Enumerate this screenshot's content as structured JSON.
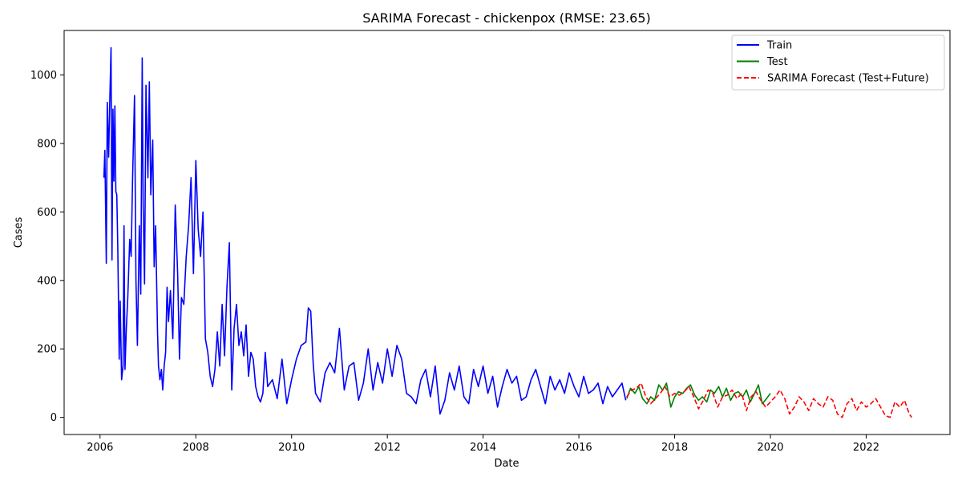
{
  "chart_data": {
    "type": "line",
    "title": "SARIMA Forecast - chickenpox (RMSE: 23.65)",
    "xlabel": "Date",
    "ylabel": "Cases",
    "xlim": [
      2005.25,
      2023.75
    ],
    "ylim": [
      -50,
      1130
    ],
    "x_ticks": [
      2006,
      2008,
      2010,
      2012,
      2014,
      2016,
      2018,
      2020,
      2022
    ],
    "x_tick_labels": [
      "2006",
      "2008",
      "2010",
      "2012",
      "2014",
      "2016",
      "2018",
      "2020",
      "2022"
    ],
    "y_ticks": [
      0,
      200,
      400,
      600,
      800,
      1000
    ],
    "y_tick_labels": [
      "0",
      "200",
      "400",
      "600",
      "800",
      "1000"
    ],
    "grid": false,
    "legend_position": "upper right",
    "series": [
      {
        "name": "Train",
        "color": "#0000ff",
        "style": "solid",
        "x": [
          2006.08,
          2006.1,
          2006.13,
          2006.15,
          2006.18,
          2006.2,
          2006.23,
          2006.25,
          2006.27,
          2006.29,
          2006.31,
          2006.33,
          2006.35,
          2006.37,
          2006.4,
          2006.42,
          2006.45,
          2006.48,
          2006.5,
          2006.52,
          2006.55,
          2006.58,
          2006.62,
          2006.65,
          2006.68,
          2006.72,
          2006.75,
          2006.78,
          2006.82,
          2006.85,
          2006.88,
          2006.9,
          2006.93,
          2006.96,
          2007.0,
          2007.03,
          2007.06,
          2007.1,
          2007.13,
          2007.16,
          2007.2,
          2007.22,
          2007.25,
          2007.28,
          2007.31,
          2007.34,
          2007.37,
          2007.4,
          2007.43,
          2007.47,
          2007.52,
          2007.57,
          2007.62,
          2007.66,
          2007.7,
          2007.75,
          2007.8,
          2007.85,
          2007.9,
          2007.95,
          2008.0,
          2008.05,
          2008.1,
          2008.15,
          2008.2,
          2008.25,
          2008.3,
          2008.35,
          2008.4,
          2008.45,
          2008.5,
          2008.55,
          2008.6,
          2008.65,
          2008.7,
          2008.75,
          2008.8,
          2008.85,
          2008.9,
          2008.95,
          2009.0,
          2009.05,
          2009.1,
          2009.15,
          2009.2,
          2009.25,
          2009.3,
          2009.35,
          2009.4,
          2009.45,
          2009.5,
          2009.6,
          2009.7,
          2009.8,
          2009.9,
          2010.0,
          2010.1,
          2010.2,
          2010.3,
          2010.35,
          2010.4,
          2010.45,
          2010.5,
          2010.6,
          2010.7,
          2010.8,
          2010.9,
          2011.0,
          2011.1,
          2011.2,
          2011.3,
          2011.4,
          2011.5,
          2011.6,
          2011.7,
          2011.8,
          2011.9,
          2012.0,
          2012.1,
          2012.2,
          2012.3,
          2012.4,
          2012.5,
          2012.6,
          2012.7,
          2012.8,
          2012.9,
          2013.0,
          2013.1,
          2013.2,
          2013.3,
          2013.4,
          2013.5,
          2013.6,
          2013.7,
          2013.8,
          2013.9,
          2014.0,
          2014.1,
          2014.2,
          2014.3,
          2014.4,
          2014.5,
          2014.6,
          2014.7,
          2014.8,
          2014.9,
          2015.0,
          2015.1,
          2015.2,
          2015.3,
          2015.4,
          2015.5,
          2015.6,
          2015.7,
          2015.8,
          2015.9,
          2016.0,
          2016.1,
          2016.2,
          2016.3,
          2016.4,
          2016.5,
          2016.6,
          2016.7,
          2016.8,
          2016.9,
          2016.98
        ],
        "y": [
          700,
          780,
          450,
          920,
          760,
          900,
          1080,
          460,
          900,
          690,
          910,
          660,
          650,
          500,
          170,
          340,
          110,
          150,
          560,
          140,
          260,
          350,
          520,
          470,
          700,
          940,
          400,
          210,
          560,
          360,
          1050,
          620,
          390,
          970,
          700,
          980,
          650,
          810,
          440,
          560,
          250,
          150,
          110,
          140,
          80,
          150,
          190,
          380,
          280,
          370,
          230,
          620,
          420,
          170,
          350,
          330,
          470,
          560,
          700,
          420,
          750,
          550,
          470,
          600,
          230,
          190,
          120,
          90,
          140,
          250,
          150,
          330,
          180,
          380,
          510,
          80,
          260,
          330,
          210,
          250,
          180,
          270,
          120,
          190,
          170,
          90,
          60,
          45,
          70,
          190,
          90,
          110,
          55,
          170,
          40,
          110,
          170,
          210,
          220,
          320,
          310,
          160,
          70,
          45,
          130,
          160,
          130,
          260,
          80,
          150,
          160,
          50,
          100,
          200,
          80,
          160,
          100,
          200,
          120,
          210,
          170,
          70,
          60,
          40,
          110,
          140,
          60,
          150,
          10,
          50,
          130,
          80,
          150,
          60,
          40,
          140,
          90,
          150,
          70,
          120,
          30,
          90,
          140,
          100,
          120,
          50,
          60,
          110,
          140,
          90,
          40,
          120,
          80,
          110,
          70,
          130,
          90,
          60,
          120,
          70,
          80,
          100,
          40,
          90,
          60,
          80,
          100,
          50
        ]
      },
      {
        "name": "Test",
        "color": "#008000",
        "style": "solid",
        "x": [
          2017.0,
          2017.08,
          2017.17,
          2017.25,
          2017.33,
          2017.42,
          2017.5,
          2017.58,
          2017.67,
          2017.75,
          2017.83,
          2017.92,
          2018.0,
          2018.08,
          2018.17,
          2018.25,
          2018.33,
          2018.42,
          2018.5,
          2018.58,
          2018.67,
          2018.75,
          2018.83,
          2018.92,
          2019.0,
          2019.08,
          2019.17,
          2019.25,
          2019.33,
          2019.42,
          2019.5,
          2019.58,
          2019.67,
          2019.75,
          2019.83,
          2019.92,
          2020.0
        ],
        "y": [
          55,
          85,
          70,
          90,
          55,
          40,
          60,
          50,
          95,
          80,
          100,
          30,
          60,
          75,
          70,
          85,
          95,
          65,
          50,
          60,
          45,
          80,
          70,
          90,
          60,
          85,
          50,
          70,
          75,
          60,
          80,
          45,
          70,
          95,
          40,
          55,
          70
        ]
      },
      {
        "name": "SARIMA Forecast (Test+Future)",
        "color": "#ff0000",
        "style": "dashed",
        "x": [
          2017.0,
          2017.1,
          2017.2,
          2017.3,
          2017.4,
          2017.5,
          2017.6,
          2017.7,
          2017.8,
          2017.9,
          2018.0,
          2018.1,
          2018.2,
          2018.3,
          2018.4,
          2018.5,
          2018.6,
          2018.7,
          2018.8,
          2018.9,
          2019.0,
          2019.1,
          2019.2,
          2019.3,
          2019.4,
          2019.5,
          2019.6,
          2019.7,
          2019.8,
          2019.9,
          2020.0,
          2020.1,
          2020.2,
          2020.3,
          2020.4,
          2020.5,
          2020.6,
          2020.7,
          2020.8,
          2020.9,
          2021.0,
          2021.1,
          2021.2,
          2021.3,
          2021.4,
          2021.5,
          2021.6,
          2021.7,
          2021.8,
          2021.9,
          2022.0,
          2022.1,
          2022.2,
          2022.3,
          2022.4,
          2022.5,
          2022.6,
          2022.7,
          2022.8,
          2022.9,
          2022.95
        ],
        "y": [
          60,
          80,
          85,
          100,
          60,
          40,
          55,
          70,
          90,
          60,
          70,
          65,
          75,
          90,
          60,
          25,
          50,
          80,
          70,
          30,
          60,
          65,
          80,
          55,
          70,
          20,
          60,
          75,
          50,
          30,
          45,
          60,
          80,
          55,
          10,
          30,
          60,
          45,
          20,
          55,
          40,
          30,
          60,
          50,
          10,
          0,
          40,
          55,
          20,
          45,
          30,
          40,
          55,
          30,
          5,
          0,
          45,
          30,
          50,
          10,
          0
        ]
      }
    ]
  }
}
